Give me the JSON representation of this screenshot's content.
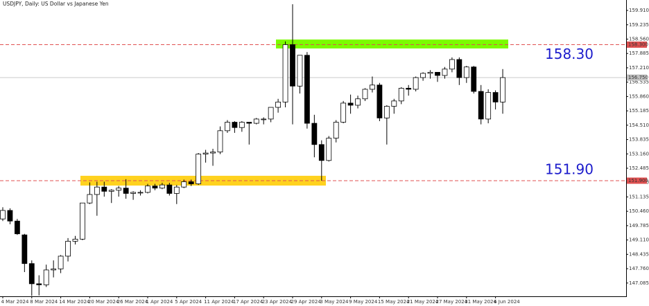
{
  "chart_data": {
    "type": "candlestick",
    "title": "USDJPY, Daily:  US Dollar vs Japanese Yen",
    "categories": [
      "4 Mar 2024",
      null,
      null,
      null,
      "8 Mar 2024",
      null,
      null,
      null,
      "14 Mar 2024",
      null,
      null,
      null,
      "20 Mar 2024",
      null,
      null,
      null,
      "26 Mar 2024",
      null,
      null,
      null,
      "1 Apr 2024",
      null,
      null,
      null,
      "5 Apr 2024",
      null,
      null,
      null,
      "11 Apr 2024",
      null,
      null,
      null,
      "17 Apr 2024",
      null,
      null,
      null,
      "23 Apr 2024",
      null,
      null,
      null,
      "29 Apr 2024",
      null,
      null,
      null,
      "3 May 2024",
      null,
      null,
      null,
      "9 May 2024",
      null,
      null,
      null,
      "15 May 2024",
      null,
      null,
      null,
      "21 May 2024",
      null,
      null,
      null,
      "27 May 2024",
      null,
      null,
      null,
      "31 May 2024",
      null,
      null,
      null,
      "6 Jun 2024",
      null
    ],
    "open": [
      150.1,
      150.5,
      150.0,
      149.35,
      148.0,
      147.05,
      147.0,
      147.7,
      147.75,
      148.35,
      149.05,
      149.15,
      150.85,
      151.25,
      151.6,
      151.4,
      151.45,
      151.55,
      151.3,
      151.35,
      151.35,
      151.65,
      151.55,
      151.7,
      151.3,
      151.6,
      151.85,
      151.75,
      153.15,
      153.2,
      153.25,
      154.25,
      154.65,
      154.4,
      154.65,
      154.6,
      154.8,
      154.8,
      155.35,
      155.6,
      158.3,
      156.35,
      157.8,
      154.6,
      153.6,
      152.85,
      153.9,
      154.65,
      155.55,
      155.45,
      155.75,
      156.2,
      156.4,
      154.85,
      155.4,
      155.65,
      156.25,
      156.2,
      156.75,
      156.95,
      157.0,
      156.85,
      157.15,
      157.6,
      156.75,
      157.25,
      156.1,
      154.8,
      156.05,
      155.6
    ],
    "high": [
      150.65,
      150.6,
      150.1,
      149.4,
      148.15,
      147.45,
      147.95,
      148.15,
      148.4,
      149.2,
      149.3,
      150.85,
      151.82,
      151.85,
      151.85,
      151.5,
      151.65,
      151.97,
      151.4,
      151.45,
      151.75,
      151.75,
      151.8,
      151.8,
      151.7,
      151.95,
      151.95,
      153.2,
      153.35,
      153.4,
      154.45,
      154.75,
      154.7,
      154.7,
      154.65,
      154.85,
      154.88,
      155.35,
      155.75,
      158.45,
      160.2,
      157.8,
      157.95,
      155.0,
      153.8,
      154.0,
      154.75,
      155.65,
      155.95,
      155.9,
      156.25,
      156.8,
      156.5,
      155.45,
      155.75,
      156.3,
      156.4,
      156.8,
      157.0,
      157.1,
      157.0,
      157.25,
      157.7,
      157.7,
      157.3,
      157.3,
      156.4,
      156.2,
      156.15,
      157.15
    ],
    "low": [
      150.0,
      149.85,
      149.35,
      147.6,
      146.48,
      146.5,
      146.9,
      147.35,
      147.55,
      148.1,
      148.9,
      149.1,
      150.8,
      150.25,
      151.15,
      150.85,
      151.15,
      151.05,
      151.0,
      151.2,
      151.3,
      151.45,
      151.5,
      151.2,
      150.8,
      151.55,
      151.65,
      151.7,
      152.75,
      152.6,
      153.15,
      154.15,
      154.15,
      154.2,
      153.6,
      154.55,
      154.55,
      154.65,
      155.1,
      155.35,
      154.55,
      156.0,
      154.35,
      153.0,
      151.9,
      152.8,
      153.7,
      154.6,
      155.05,
      155.3,
      155.65,
      156.05,
      154.7,
      153.6,
      155.05,
      155.5,
      155.9,
      156.1,
      156.6,
      156.7,
      156.55,
      156.7,
      157.0,
      156.4,
      156.5,
      156.0,
      154.55,
      154.6,
      155.25,
      155.05
    ],
    "close": [
      150.5,
      150.0,
      149.4,
      148.0,
      147.05,
      147.0,
      147.7,
      147.75,
      148.35,
      149.05,
      149.15,
      150.85,
      151.25,
      151.6,
      151.4,
      151.45,
      151.55,
      151.3,
      151.35,
      151.35,
      151.65,
      151.55,
      151.7,
      151.3,
      151.6,
      151.85,
      151.75,
      153.15,
      153.2,
      153.25,
      154.25,
      154.65,
      154.4,
      154.65,
      154.6,
      154.8,
      154.8,
      155.35,
      155.6,
      158.3,
      156.35,
      157.8,
      154.6,
      153.6,
      152.85,
      153.9,
      154.65,
      155.55,
      155.45,
      155.75,
      156.2,
      156.4,
      154.85,
      155.4,
      155.65,
      156.25,
      156.2,
      156.75,
      156.95,
      157.0,
      156.85,
      157.15,
      157.6,
      156.75,
      157.25,
      156.1,
      154.8,
      156.05,
      155.6,
      156.75
    ],
    "up_color": "#ffffff",
    "down_color": "#000000",
    "ylim": [
      146.46,
      160.4
    ],
    "yticks": [
      {
        "value": 159.91,
        "label": "159.910"
      },
      159.235,
      {
        "value": 158.56,
        "label": "158.560"
      },
      157.885,
      {
        "value": 157.21,
        "label": "157.210"
      },
      156.535,
      {
        "value": 155.86,
        "label": "155.860"
      },
      155.185,
      {
        "value": 154.51,
        "label": "154.510"
      },
      153.835,
      {
        "value": 153.16,
        "label": "153.160"
      },
      152.485,
      {
        "value": 151.81,
        "label": "151.810"
      },
      151.135,
      {
        "value": 150.46,
        "label": "150.460"
      },
      149.785,
      {
        "value": 149.11,
        "label": "149.110"
      },
      148.435,
      {
        "value": 147.76,
        "label": "147.760"
      },
      147.085
    ],
    "hlines": [
      {
        "value": 158.3,
        "label": "158.30",
        "axis_label": "158.300",
        "color": "#e05050"
      },
      {
        "value": 151.9,
        "label": "151.90",
        "axis_label": "151.900",
        "color": "#e05050"
      }
    ],
    "last_price": {
      "value": 156.75,
      "label": "156.750",
      "color": "#c0c0c0"
    },
    "zones": [
      {
        "low": 158.12,
        "high": 158.54,
        "color": "#7cfc00"
      },
      {
        "low": 151.67,
        "high": 152.13,
        "color": "#ffd21f"
      }
    ]
  }
}
